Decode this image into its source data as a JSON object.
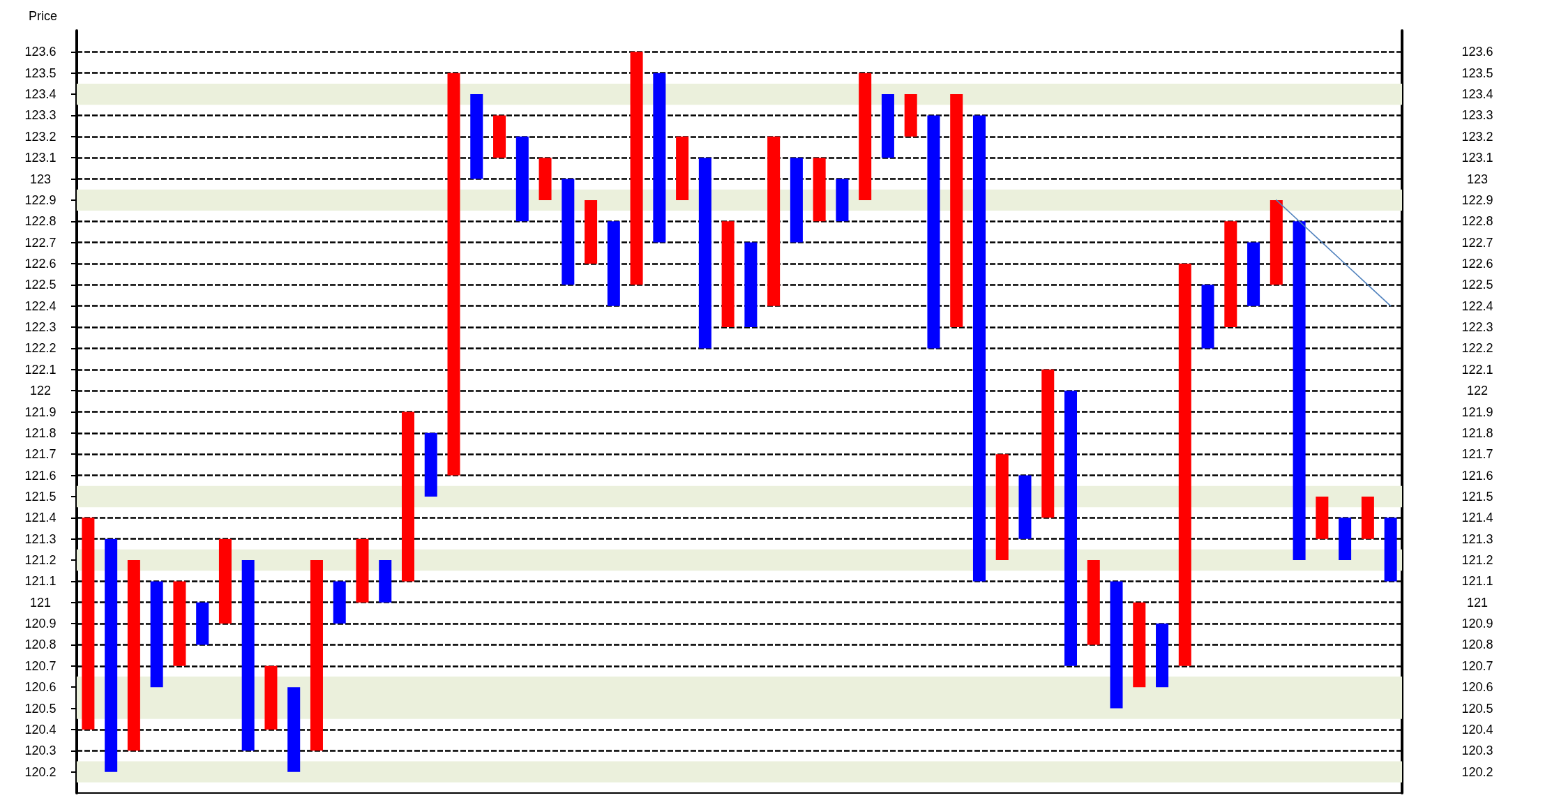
{
  "chart_data": {
    "type": "bar",
    "ylabel": "Price",
    "ylim": [
      120.1,
      123.7
    ],
    "y2lim": [
      120.1,
      123.7
    ],
    "categories": [
      null,
      null,
      null,
      null,
      null,
      null,
      null,
      null,
      null,
      null,
      null,
      null,
      null,
      null,
      null,
      null,
      null,
      null,
      null,
      null,
      null,
      null,
      null,
      null,
      null,
      null,
      null,
      null,
      null,
      null,
      null,
      null,
      null,
      null,
      null,
      null,
      null,
      null,
      null,
      null,
      null,
      null,
      null,
      null,
      null,
      null,
      null,
      null,
      null,
      null,
      null,
      null,
      null,
      null,
      null,
      null,
      null,
      null
    ],
    "yticks": [
      120.2,
      120.3,
      120.4,
      120.5,
      120.6,
      120.7,
      120.8,
      120.9,
      121,
      121.1,
      121.2,
      121.3,
      121.4,
      121.5,
      121.6,
      121.7,
      121.8,
      121.9,
      122,
      122.1,
      122.2,
      122.3,
      122.4,
      122.5,
      122.6,
      122.7,
      122.8,
      122.9,
      123,
      123.1,
      123.2,
      123.3,
      123.4,
      123.5,
      123.6
    ],
    "y2ticks": [
      120.2,
      120.3,
      120.4,
      120.5,
      120.6,
      120.7,
      120.8,
      120.9,
      121,
      121.1,
      121.2,
      121.3,
      121.4,
      121.5,
      121.6,
      121.7,
      121.8,
      121.9,
      122,
      122.1,
      122.2,
      122.3,
      122.4,
      122.5,
      122.6,
      122.7,
      122.8,
      122.9,
      123,
      123.1,
      123.2,
      123.3,
      123.4,
      123.5,
      123.6
    ],
    "tick_labels": "y",
    "grid": "y",
    "bands": [
      {
        "axis": "y",
        "from": 123.35,
        "to": 123.45,
        "color": "#ebf0dc"
      },
      {
        "axis": "y",
        "from": 122.85,
        "to": 122.95,
        "color": "#ebf0dc"
      },
      {
        "axis": "y",
        "from": 121.45,
        "to": 121.55,
        "color": "#ebf0dc"
      },
      {
        "axis": "y",
        "from": 121.15,
        "to": 121.25,
        "color": "#ebf0dc"
      },
      {
        "axis": "y",
        "from": 120.45,
        "to": 120.65,
        "color": "#ebf0dc"
      },
      {
        "axis": "y",
        "from": 120.15,
        "to": 120.25,
        "color": "#ebf0dc"
      }
    ],
    "series": [
      {
        "base": [
          120.4,
          120.2,
          120.3,
          120.6,
          120.7,
          120.8,
          120.9,
          120.3,
          120.4,
          120.2,
          120.3,
          120.9,
          121,
          121,
          121.1,
          121.5,
          121.6,
          123,
          123.1,
          122.8,
          122.9,
          122.5,
          122.6,
          122.4,
          122.5,
          122.7,
          122.9,
          122.2,
          122.3,
          122.3,
          122.4,
          122.7,
          122.8,
          122.8,
          122.9,
          123.1,
          123.2,
          122.2,
          122.3,
          121.1,
          121.2,
          121.3,
          121.4,
          120.7,
          120.8,
          120.5,
          120.6,
          120.6,
          120.7,
          122.2,
          122.3,
          122.4,
          122.5,
          121.2,
          121.3,
          121.2,
          121.3,
          121.1
        ],
        "values": [
          1.0,
          1.1,
          0.9,
          0.5,
          0.4,
          0.2,
          0.4,
          0.9,
          0.3,
          0.4,
          0.9,
          0.2,
          0.3,
          0.2,
          0.8,
          0.3,
          1.9,
          0.4,
          0.2,
          0.4,
          0.2,
          0.5,
          0.3,
          0.4,
          1.1,
          0.8,
          0.3,
          0.9,
          0.5,
          0.4,
          0.8,
          0.4,
          0.3,
          0.2,
          0.6,
          0.3,
          0.2,
          1.1,
          1.1,
          2.2,
          0.5,
          0.3,
          0.7,
          1.3,
          0.4,
          0.6,
          0.4,
          0.3,
          1.9,
          0.3,
          0.5,
          0.3,
          0.4,
          1.6,
          0.2,
          0.2,
          0.2,
          0.3
        ],
        "colors": [
          "#ff0000",
          "#0000ff",
          "#ff0000",
          "#0000ff",
          "#ff0000",
          "#0000ff",
          "#ff0000",
          "#0000ff",
          "#ff0000",
          "#0000ff",
          "#ff0000",
          "#0000ff",
          "#ff0000",
          "#0000ff",
          "#ff0000",
          "#0000ff",
          "#ff0000",
          "#0000ff",
          "#ff0000",
          "#0000ff",
          "#ff0000",
          "#0000ff",
          "#ff0000",
          "#0000ff",
          "#ff0000",
          "#0000ff",
          "#ff0000",
          "#0000ff",
          "#ff0000",
          "#0000ff",
          "#ff0000",
          "#0000ff",
          "#ff0000",
          "#0000ff",
          "#ff0000",
          "#0000ff",
          "#ff0000",
          "#0000ff",
          "#ff0000",
          "#0000ff",
          "#ff0000",
          "#0000ff",
          "#ff0000",
          "#0000ff",
          "#ff0000",
          "#0000ff",
          "#ff0000",
          "#0000ff",
          "#ff0000",
          "#0000ff",
          "#ff0000",
          "#0000ff",
          "#ff0000",
          "#0000ff",
          "#ff0000",
          "#0000ff",
          "#ff0000",
          "#0000ff"
        ]
      },
      {
        "type": "line",
        "color": "#4f81bd",
        "values": [
          null,
          null,
          null,
          null,
          null,
          null,
          null,
          null,
          null,
          null,
          null,
          null,
          null,
          null,
          null,
          null,
          null,
          null,
          null,
          null,
          null,
          null,
          null,
          null,
          null,
          null,
          null,
          null,
          null,
          null,
          null,
          null,
          null,
          null,
          null,
          null,
          null,
          null,
          null,
          null,
          null,
          null,
          null,
          null,
          null,
          null,
          null,
          null,
          null,
          null,
          null,
          null,
          122.9,
          122.8,
          122.7,
          122.6,
          122.5,
          122.4
        ]
      }
    ]
  }
}
